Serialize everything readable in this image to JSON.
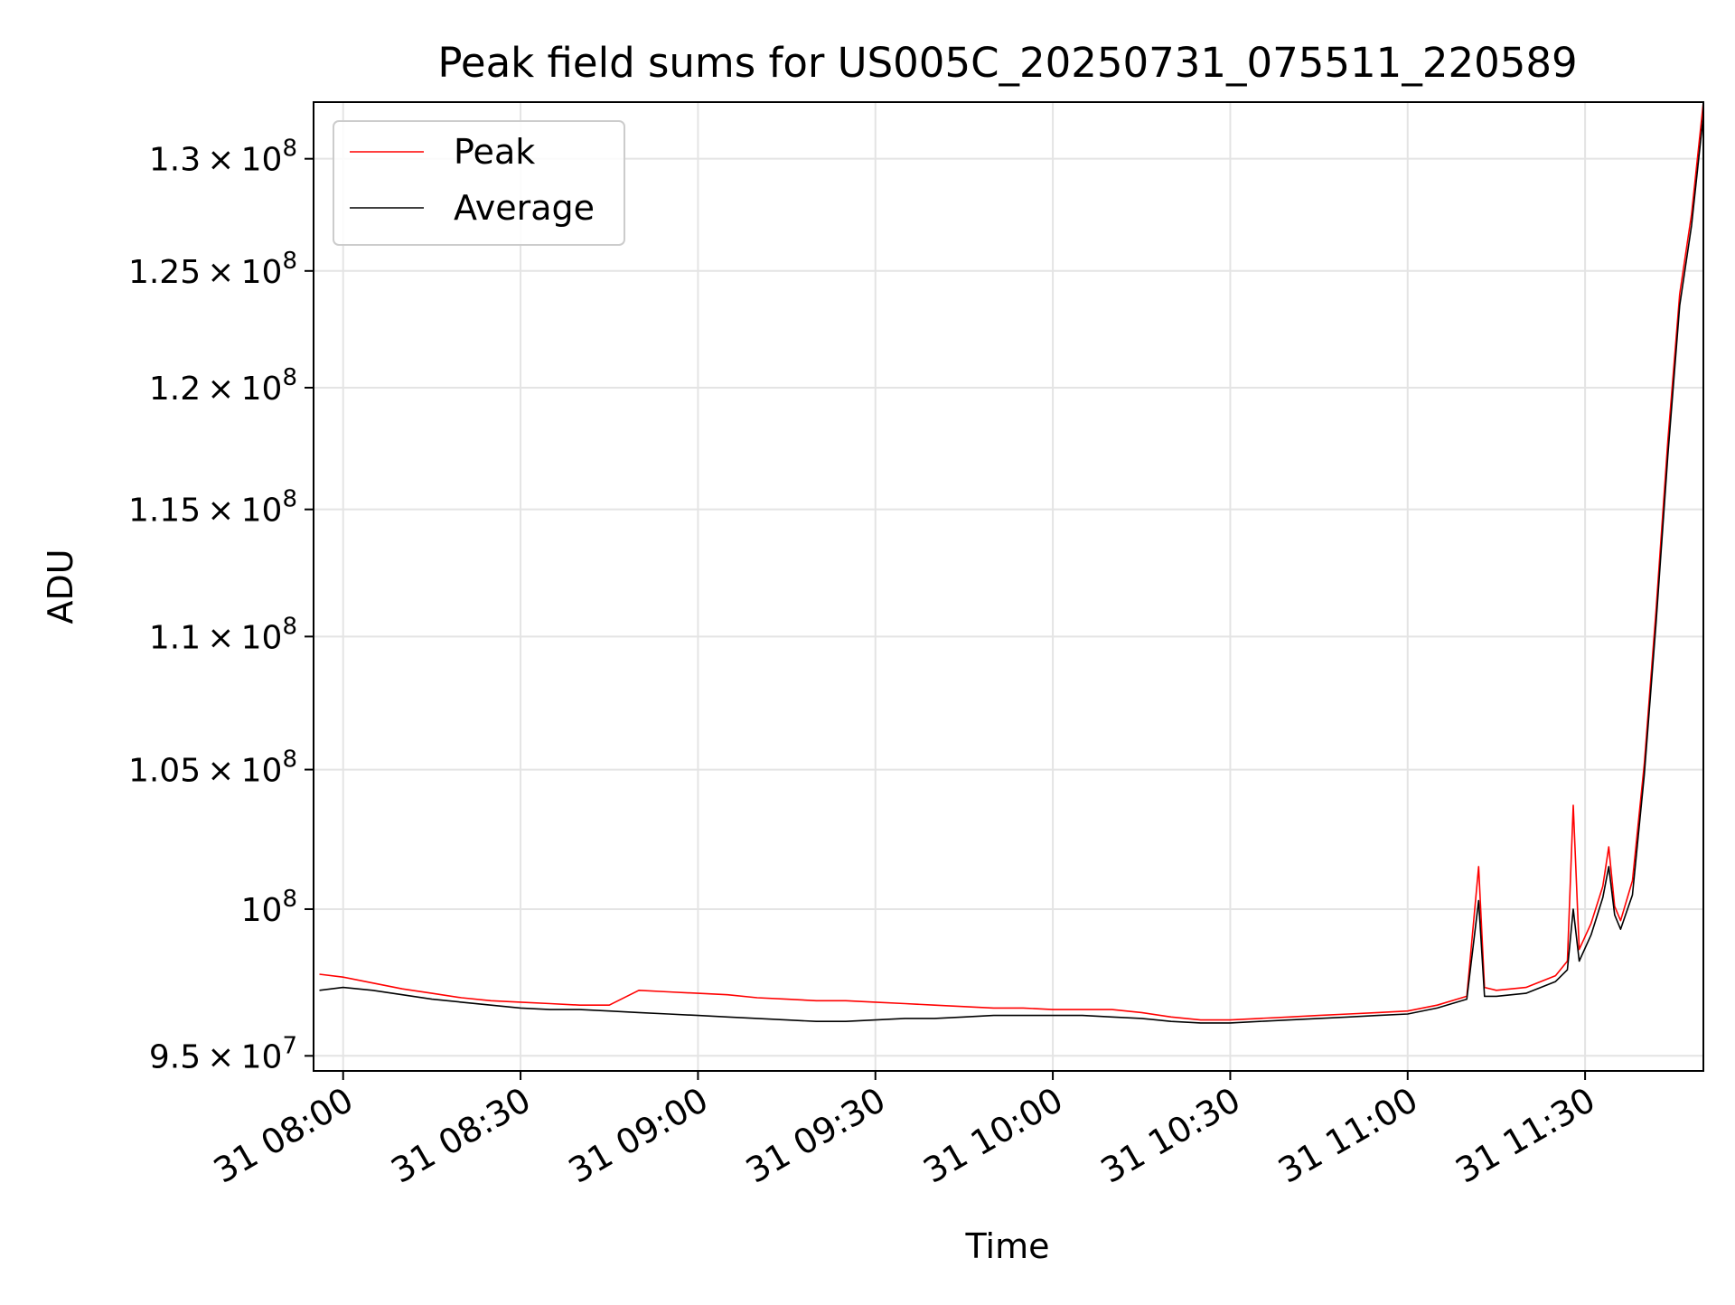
{
  "chart_data": {
    "type": "line",
    "title": "Peak field sums for US005C_20250731_075511_220589",
    "xlabel": "Time",
    "ylabel": "ADU",
    "x_range": [
      "2025-07-31 07:55",
      "2025-07-31 11:50"
    ],
    "ylim": [
      94500000,
      132600000
    ],
    "y_scale": "log",
    "grid": true,
    "legend_position": "upper left",
    "x_ticks": [
      {
        "value": "2025-07-31 08:00",
        "label": "31 08:00"
      },
      {
        "value": "2025-07-31 08:30",
        "label": "31 08:30"
      },
      {
        "value": "2025-07-31 09:00",
        "label": "31 09:00"
      },
      {
        "value": "2025-07-31 09:30",
        "label": "31 09:30"
      },
      {
        "value": "2025-07-31 10:00",
        "label": "31 10:00"
      },
      {
        "value": "2025-07-31 10:30",
        "label": "31 10:30"
      },
      {
        "value": "2025-07-31 11:00",
        "label": "31 11:00"
      },
      {
        "value": "2025-07-31 11:30",
        "label": "31 11:30"
      }
    ],
    "y_ticks": [
      {
        "value": 95000000,
        "mant": "9.5",
        "exp": "7"
      },
      {
        "value": 100000000,
        "mant": "",
        "exp": "8"
      },
      {
        "value": 105000000,
        "mant": "1.05",
        "exp": "8"
      },
      {
        "value": 110000000,
        "mant": "1.1",
        "exp": "8"
      },
      {
        "value": 115000000,
        "mant": "1.15",
        "exp": "8"
      },
      {
        "value": 120000000,
        "mant": "1.2",
        "exp": "8"
      },
      {
        "value": 125000000,
        "mant": "1.25",
        "exp": "8"
      },
      {
        "value": 130000000,
        "mant": "1.3",
        "exp": "8"
      }
    ],
    "series": [
      {
        "name": "Peak",
        "color": "#ff0000",
        "points": [
          [
            "2025-07-31 07:56",
            97750000
          ],
          [
            "2025-07-31 08:00",
            97650000
          ],
          [
            "2025-07-31 08:05",
            97450000
          ],
          [
            "2025-07-31 08:10",
            97250000
          ],
          [
            "2025-07-31 08:15",
            97100000
          ],
          [
            "2025-07-31 08:20",
            96950000
          ],
          [
            "2025-07-31 08:25",
            96850000
          ],
          [
            "2025-07-31 08:30",
            96800000
          ],
          [
            "2025-07-31 08:35",
            96750000
          ],
          [
            "2025-07-31 08:40",
            96700000
          ],
          [
            "2025-07-31 08:45",
            96700000
          ],
          [
            "2025-07-31 08:50",
            97200000
          ],
          [
            "2025-07-31 08:55",
            97150000
          ],
          [
            "2025-07-31 09:00",
            97100000
          ],
          [
            "2025-07-31 09:05",
            97050000
          ],
          [
            "2025-07-31 09:10",
            96950000
          ],
          [
            "2025-07-31 09:15",
            96900000
          ],
          [
            "2025-07-31 09:20",
            96850000
          ],
          [
            "2025-07-31 09:25",
            96850000
          ],
          [
            "2025-07-31 09:30",
            96800000
          ],
          [
            "2025-07-31 09:35",
            96750000
          ],
          [
            "2025-07-31 09:40",
            96700000
          ],
          [
            "2025-07-31 09:45",
            96650000
          ],
          [
            "2025-07-31 09:50",
            96600000
          ],
          [
            "2025-07-31 09:55",
            96600000
          ],
          [
            "2025-07-31 10:00",
            96550000
          ],
          [
            "2025-07-31 10:05",
            96550000
          ],
          [
            "2025-07-31 10:10",
            96550000
          ],
          [
            "2025-07-31 10:15",
            96450000
          ],
          [
            "2025-07-31 10:20",
            96300000
          ],
          [
            "2025-07-31 10:25",
            96200000
          ],
          [
            "2025-07-31 10:30",
            96200000
          ],
          [
            "2025-07-31 10:35",
            96250000
          ],
          [
            "2025-07-31 10:40",
            96300000
          ],
          [
            "2025-07-31 10:45",
            96350000
          ],
          [
            "2025-07-31 10:50",
            96400000
          ],
          [
            "2025-07-31 10:55",
            96450000
          ],
          [
            "2025-07-31 11:00",
            96500000
          ],
          [
            "2025-07-31 11:05",
            96700000
          ],
          [
            "2025-07-31 11:10",
            97000000
          ],
          [
            "2025-07-31 11:12",
            101500000
          ],
          [
            "2025-07-31 11:13",
            97300000
          ],
          [
            "2025-07-31 11:15",
            97200000
          ],
          [
            "2025-07-31 11:20",
            97300000
          ],
          [
            "2025-07-31 11:25",
            97700000
          ],
          [
            "2025-07-31 11:27",
            98200000
          ],
          [
            "2025-07-31 11:28",
            103700000
          ],
          [
            "2025-07-31 11:29",
            98600000
          ],
          [
            "2025-07-31 11:31",
            99500000
          ],
          [
            "2025-07-31 11:33",
            100800000
          ],
          [
            "2025-07-31 11:34",
            102200000
          ],
          [
            "2025-07-31 11:35",
            100100000
          ],
          [
            "2025-07-31 11:36",
            99600000
          ],
          [
            "2025-07-31 11:38",
            101000000
          ],
          [
            "2025-07-31 11:40",
            105200000
          ],
          [
            "2025-07-31 11:42",
            111000000
          ],
          [
            "2025-07-31 11:44",
            117800000
          ],
          [
            "2025-07-31 11:46",
            124000000
          ],
          [
            "2025-07-31 11:48",
            127500000
          ],
          [
            "2025-07-31 11:50",
            132600000
          ]
        ]
      },
      {
        "name": "Average",
        "color": "#000000",
        "points": [
          [
            "2025-07-31 07:56",
            97200000
          ],
          [
            "2025-07-31 08:00",
            97300000
          ],
          [
            "2025-07-31 08:05",
            97200000
          ],
          [
            "2025-07-31 08:10",
            97050000
          ],
          [
            "2025-07-31 08:15",
            96900000
          ],
          [
            "2025-07-31 08:20",
            96800000
          ],
          [
            "2025-07-31 08:25",
            96700000
          ],
          [
            "2025-07-31 08:30",
            96600000
          ],
          [
            "2025-07-31 08:35",
            96550000
          ],
          [
            "2025-07-31 08:40",
            96550000
          ],
          [
            "2025-07-31 08:45",
            96500000
          ],
          [
            "2025-07-31 08:50",
            96450000
          ],
          [
            "2025-07-31 08:55",
            96400000
          ],
          [
            "2025-07-31 09:00",
            96350000
          ],
          [
            "2025-07-31 09:05",
            96300000
          ],
          [
            "2025-07-31 09:10",
            96250000
          ],
          [
            "2025-07-31 09:15",
            96200000
          ],
          [
            "2025-07-31 09:20",
            96150000
          ],
          [
            "2025-07-31 09:25",
            96150000
          ],
          [
            "2025-07-31 09:30",
            96200000
          ],
          [
            "2025-07-31 09:35",
            96250000
          ],
          [
            "2025-07-31 09:40",
            96250000
          ],
          [
            "2025-07-31 09:45",
            96300000
          ],
          [
            "2025-07-31 09:50",
            96350000
          ],
          [
            "2025-07-31 09:55",
            96350000
          ],
          [
            "2025-07-31 10:00",
            96350000
          ],
          [
            "2025-07-31 10:05",
            96350000
          ],
          [
            "2025-07-31 10:10",
            96300000
          ],
          [
            "2025-07-31 10:15",
            96250000
          ],
          [
            "2025-07-31 10:20",
            96150000
          ],
          [
            "2025-07-31 10:25",
            96100000
          ],
          [
            "2025-07-31 10:30",
            96100000
          ],
          [
            "2025-07-31 10:35",
            96150000
          ],
          [
            "2025-07-31 10:40",
            96200000
          ],
          [
            "2025-07-31 10:45",
            96250000
          ],
          [
            "2025-07-31 10:50",
            96300000
          ],
          [
            "2025-07-31 10:55",
            96350000
          ],
          [
            "2025-07-31 11:00",
            96400000
          ],
          [
            "2025-07-31 11:05",
            96600000
          ],
          [
            "2025-07-31 11:10",
            96900000
          ],
          [
            "2025-07-31 11:12",
            100300000
          ],
          [
            "2025-07-31 11:13",
            97000000
          ],
          [
            "2025-07-31 11:15",
            97000000
          ],
          [
            "2025-07-31 11:20",
            97100000
          ],
          [
            "2025-07-31 11:25",
            97500000
          ],
          [
            "2025-07-31 11:27",
            97900000
          ],
          [
            "2025-07-31 11:28",
            100000000
          ],
          [
            "2025-07-31 11:29",
            98200000
          ],
          [
            "2025-07-31 11:31",
            99100000
          ],
          [
            "2025-07-31 11:33",
            100400000
          ],
          [
            "2025-07-31 11:34",
            101500000
          ],
          [
            "2025-07-31 11:35",
            99800000
          ],
          [
            "2025-07-31 11:36",
            99300000
          ],
          [
            "2025-07-31 11:38",
            100500000
          ],
          [
            "2025-07-31 11:40",
            104800000
          ],
          [
            "2025-07-31 11:42",
            110500000
          ],
          [
            "2025-07-31 11:44",
            117200000
          ],
          [
            "2025-07-31 11:46",
            123500000
          ],
          [
            "2025-07-31 11:48",
            127000000
          ],
          [
            "2025-07-31 11:50",
            132000000
          ]
        ]
      }
    ]
  }
}
